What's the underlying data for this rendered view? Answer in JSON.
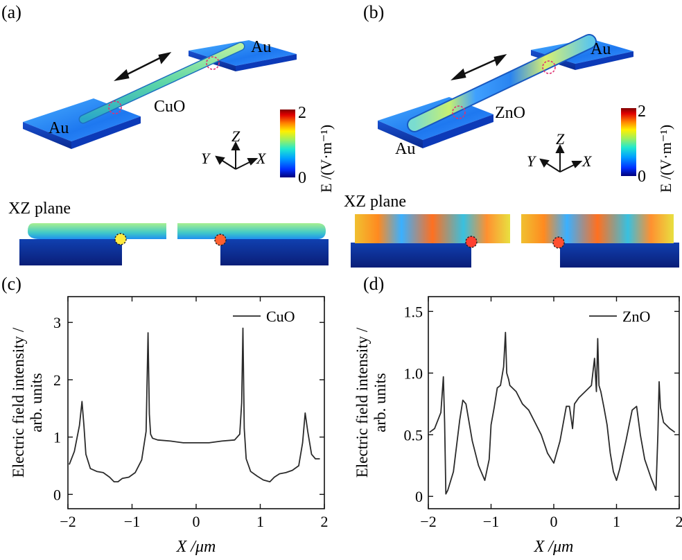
{
  "panels": {
    "a": {
      "letter": "(a)",
      "material": "CuO",
      "electrode": "Au",
      "plane": "XZ plane"
    },
    "b": {
      "letter": "(b)",
      "material": "ZnO",
      "electrode": "Au",
      "plane": "XZ plane"
    },
    "c": {
      "letter": "(c)"
    },
    "d": {
      "letter": "(d)"
    }
  },
  "colorbar": {
    "max": "2",
    "min": "0",
    "label": "E /(V·m⁻¹)",
    "colors": [
      "#00007a",
      "#0030ff",
      "#00a0ff",
      "#20e8d0",
      "#9cf060",
      "#fff000",
      "#ff8000",
      "#e00000",
      "#800000"
    ]
  },
  "axes_glyph": {
    "z": "Z",
    "y": "Y",
    "x": "X"
  },
  "chart_data": [
    {
      "type": "line",
      "title": "",
      "legend": "CuO",
      "legend_position": "top-right",
      "xlabel": "X /μm",
      "ylabel": "Electric field intensity / arb. units",
      "xlim": [
        -2.0,
        2.0
      ],
      "ylim": [
        -0.25,
        3.45
      ],
      "xticks": [
        -2,
        -1,
        0,
        1,
        2
      ],
      "xtick_labels": [
        "−2",
        "−1",
        "0",
        "1",
        "2"
      ],
      "yticks": [
        0,
        1,
        2,
        3
      ],
      "ytick_labels": [
        "0",
        "1",
        "2",
        "3"
      ],
      "x": [
        -1.98,
        -1.9,
        -1.82,
        -1.78,
        -1.75,
        -1.72,
        -1.65,
        -1.55,
        -1.45,
        -1.35,
        -1.28,
        -1.22,
        -1.15,
        -1.05,
        -0.95,
        -0.85,
        -0.78,
        -0.75,
        -0.73,
        -0.71,
        -0.68,
        -0.6,
        -0.4,
        -0.2,
        0,
        0.2,
        0.4,
        0.6,
        0.68,
        0.71,
        0.73,
        0.75,
        0.78,
        0.85,
        0.95,
        1.05,
        1.15,
        1.22,
        1.3,
        1.4,
        1.5,
        1.6,
        1.66,
        1.7,
        1.74,
        1.8,
        1.86,
        1.93
      ],
      "y": [
        0.52,
        0.75,
        1.2,
        1.62,
        1.2,
        0.7,
        0.45,
        0.4,
        0.38,
        0.3,
        0.22,
        0.22,
        0.28,
        0.3,
        0.38,
        0.6,
        1.1,
        2.82,
        1.4,
        1.05,
        0.98,
        0.95,
        0.93,
        0.9,
        0.9,
        0.9,
        0.93,
        0.95,
        1.05,
        1.6,
        2.9,
        1.15,
        0.62,
        0.4,
        0.32,
        0.25,
        0.22,
        0.3,
        0.36,
        0.38,
        0.42,
        0.5,
        0.9,
        1.42,
        1.1,
        0.7,
        0.62,
        0.62
      ]
    },
    {
      "type": "line",
      "title": "",
      "legend": "ZnO",
      "legend_position": "top-right",
      "xlabel": "X /μm",
      "ylabel": "Electric field intensity / arb. units",
      "xlim": [
        -2.0,
        2.0
      ],
      "ylim": [
        -0.1,
        1.62
      ],
      "xticks": [
        -2,
        -1,
        0,
        1,
        2
      ],
      "xtick_labels": [
        "−2",
        "−1",
        "0",
        "1",
        "2"
      ],
      "yticks": [
        0,
        0.5,
        1.0,
        1.5
      ],
      "ytick_labels": [
        "0",
        "0.5",
        "1.0",
        "1.5"
      ],
      "x": [
        -1.98,
        -1.9,
        -1.8,
        -1.76,
        -1.74,
        -1.72,
        -1.69,
        -1.6,
        -1.5,
        -1.45,
        -1.4,
        -1.3,
        -1.2,
        -1.1,
        -1.03,
        -1.0,
        -0.95,
        -0.9,
        -0.85,
        -0.8,
        -0.77,
        -0.75,
        -0.72,
        -0.7,
        -0.6,
        -0.5,
        -0.4,
        -0.3,
        -0.2,
        -0.1,
        0,
        0.1,
        0.2,
        0.25,
        0.3,
        0.33,
        0.4,
        0.5,
        0.6,
        0.65,
        0.68,
        0.7,
        0.72,
        0.75,
        0.8,
        0.85,
        0.9,
        0.95,
        1.0,
        1.05,
        1.15,
        1.25,
        1.32,
        1.38,
        1.45,
        1.55,
        1.63,
        1.66,
        1.68,
        1.7,
        1.75,
        1.85,
        1.93
      ],
      "y": [
        0.52,
        0.55,
        0.68,
        0.97,
        0.6,
        0.02,
        0.05,
        0.2,
        0.62,
        0.78,
        0.75,
        0.45,
        0.25,
        0.13,
        0.3,
        0.58,
        0.72,
        0.88,
        0.9,
        1.05,
        1.33,
        1.0,
        0.95,
        0.9,
        0.85,
        0.75,
        0.7,
        0.6,
        0.5,
        0.35,
        0.27,
        0.45,
        0.73,
        0.73,
        0.55,
        0.75,
        0.8,
        0.85,
        0.9,
        1.12,
        0.85,
        1.28,
        0.9,
        0.85,
        0.72,
        0.58,
        0.35,
        0.2,
        0.13,
        0.22,
        0.45,
        0.7,
        0.73,
        0.5,
        0.3,
        0.15,
        0.05,
        0.5,
        0.93,
        0.72,
        0.6,
        0.55,
        0.52
      ]
    }
  ]
}
